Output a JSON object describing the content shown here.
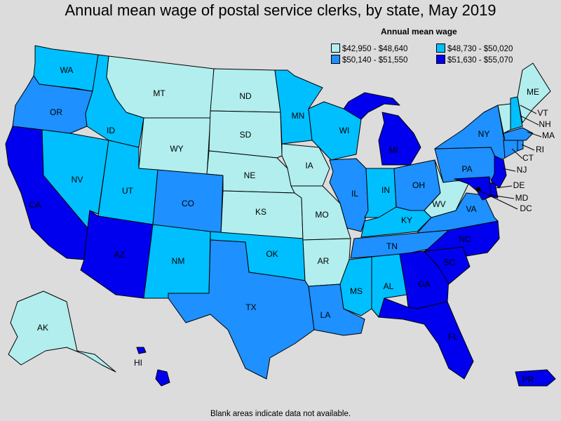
{
  "title": "Annual mean wage of postal service clerks, by state, May 2019",
  "legend": {
    "title": "Annual mean wage",
    "items": [
      {
        "label": "$42,950 - $48,640",
        "color": "#b2eeee"
      },
      {
        "label": "$48,730 - $50,020",
        "color": "#00bfff"
      },
      {
        "label": "$50,140 - $51,550",
        "color": "#1e90ff"
      },
      {
        "label": "$51,630 - $55,070",
        "color": "#0000ee"
      }
    ]
  },
  "footnote": "Blank areas indicate data not available.",
  "states": {
    "WA": "WA",
    "OR": "OR",
    "CA": "CA",
    "NV": "NV",
    "ID": "ID",
    "MT": "MT",
    "WY": "WY",
    "UT": "UT",
    "AZ": "AZ",
    "CO": "CO",
    "NM": "NM",
    "ND": "ND",
    "SD": "SD",
    "NE": "NE",
    "KS": "KS",
    "OK": "OK",
    "TX": "TX",
    "MN": "MN",
    "IA": "IA",
    "MO": "MO",
    "AR": "AR",
    "LA": "LA",
    "WI": "WI",
    "IL": "IL",
    "MI": "MI",
    "IN": "IN",
    "OH": "OH",
    "KY": "KY",
    "TN": "TN",
    "MS": "MS",
    "AL": "AL",
    "GA": "GA",
    "FL": "FL",
    "SC": "SC",
    "NC": "NC",
    "VA": "VA",
    "WV": "WV",
    "PA": "PA",
    "NY": "NY",
    "ME": "ME",
    "VT": "VT",
    "NH": "NH",
    "MA": "MA",
    "RI": "RI",
    "CT": "CT",
    "NJ": "NJ",
    "DE": "DE",
    "MD": "MD",
    "DC": "DC",
    "AK": "AK",
    "HI": "HI",
    "PR": "PR"
  }
}
